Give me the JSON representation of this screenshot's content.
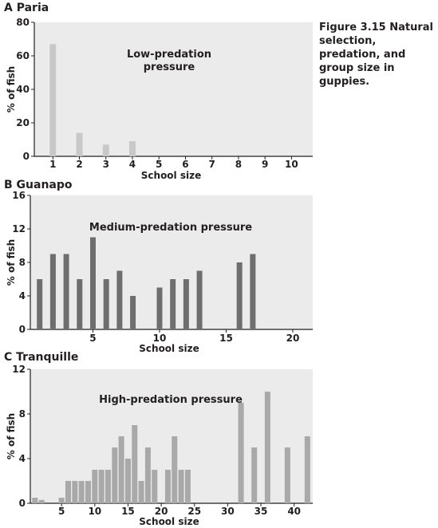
{
  "caption": "Figure 3.15 Natural selection, predation, and group size in guppies.",
  "chart_data": [
    {
      "type": "bar",
      "panel_label": "A Paria",
      "annotation": [
        "Low-predation",
        "pressure"
      ],
      "xlabel": "School size",
      "ylabel": "% of fish",
      "x_ticks": [
        1,
        2,
        3,
        4,
        5,
        6,
        7,
        8,
        9,
        10
      ],
      "y_ticks": [
        0,
        20,
        40,
        60,
        80
      ],
      "xlim": [
        0.3,
        10.8
      ],
      "ylim": [
        0,
        80
      ],
      "bar_color": "#c8c8c8",
      "background": "#ebebeb",
      "x": [
        1,
        2,
        3,
        4
      ],
      "values": [
        67,
        14,
        7,
        9
      ]
    },
    {
      "type": "bar",
      "panel_label": "B Guanapo",
      "annotation": [
        "Medium-predation pressure"
      ],
      "xlabel": "School size",
      "ylabel": "% of fish",
      "x_ticks": [
        5,
        10,
        15,
        20
      ],
      "y_ticks": [
        0,
        4,
        8,
        12,
        16
      ],
      "xlim": [
        0.3,
        21.5
      ],
      "ylim": [
        0,
        16
      ],
      "bar_color": "#6e6e6e",
      "background": "#ebebeb",
      "x": [
        1,
        2,
        3,
        4,
        5,
        6,
        7,
        8,
        9,
        10,
        11,
        12,
        13,
        16,
        17
      ],
      "values": [
        6,
        9,
        9,
        6,
        11,
        6,
        7,
        4,
        0.1,
        5,
        6,
        6,
        7,
        8,
        9
      ]
    },
    {
      "type": "bar",
      "panel_label": "C Tranquille",
      "annotation": [
        "High-predation pressure"
      ],
      "xlabel": "School size",
      "ylabel": "% of fish",
      "x_ticks": [
        5,
        10,
        15,
        20,
        25,
        30,
        35,
        40
      ],
      "y_ticks": [
        0,
        4,
        8,
        12
      ],
      "xlim": [
        0.3,
        42.8
      ],
      "ylim": [
        0,
        12
      ],
      "bar_color": "#a9a9a9",
      "background": "#ebebeb",
      "x": [
        1,
        2,
        5,
        6,
        7,
        8,
        9,
        10,
        11,
        12,
        13,
        14,
        15,
        16,
        17,
        18,
        19,
        21,
        22,
        23,
        24,
        32,
        34,
        36,
        39,
        42
      ],
      "values": [
        0.5,
        0.3,
        0.5,
        2,
        2,
        2,
        2,
        3,
        3,
        3,
        5,
        6,
        4,
        7,
        2,
        5,
        3,
        3,
        6,
        3,
        3,
        9,
        5,
        10,
        5,
        6
      ]
    }
  ]
}
